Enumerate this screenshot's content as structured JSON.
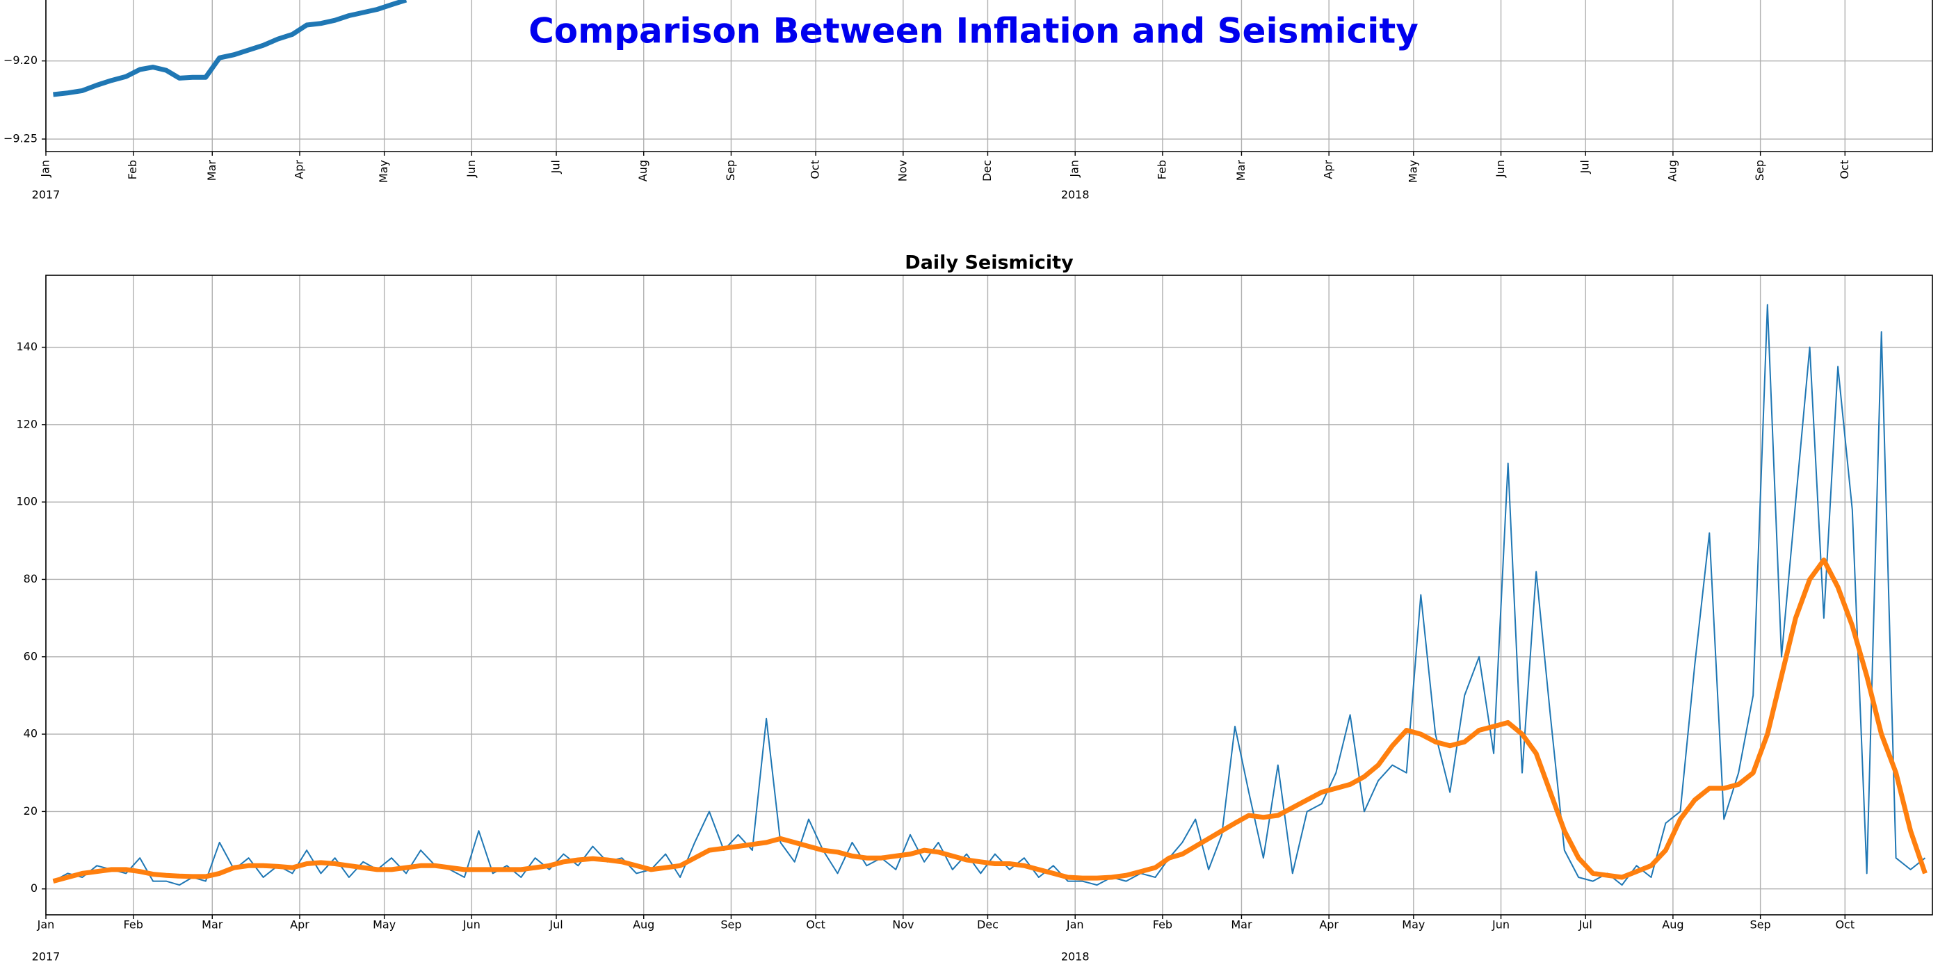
{
  "title": "Comparison Between Inflation and Seismicity",
  "chart_data": [
    {
      "type": "line",
      "x": [
        "2017-01",
        "2017-01",
        "2017-01",
        "2017-01",
        "2017-01",
        "2017-01",
        "2017-02",
        "2017-02",
        "2017-02",
        "2017-02",
        "2017-02",
        "2017-02",
        "2017-03",
        "2017-03",
        "2017-03",
        "2017-03",
        "2017-03",
        "2017-03",
        "2017-04",
        "2017-04",
        "2017-04",
        "2017-04",
        "2017-04",
        "2017-04",
        "2017-05",
        "2017-05"
      ],
      "series": [
        {
          "color": "#1f77b4",
          "values": [
            -9.2215,
            -9.2205,
            -9.219,
            -9.2155,
            -9.2125,
            -9.21,
            -9.2055,
            -9.204,
            -9.206,
            -9.211,
            -9.2105,
            -9.2105,
            -9.198,
            -9.196,
            -9.193,
            -9.19,
            -9.186,
            -9.183,
            -9.177,
            -9.176,
            -9.174,
            -9.171,
            -9.169,
            -9.167,
            -9.164,
            -9.161
          ]
        }
      ],
      "xlim": [
        "2017-01",
        "2018-11"
      ],
      "ylim": [
        -9.258,
        -9.161
      ],
      "yticks": [
        {
          "value": -9.25,
          "label": "−9.25"
        },
        {
          "value": -9.2,
          "label": "−9.20"
        }
      ],
      "xticks": [
        {
          "value": "2017-01",
          "label": "Jan"
        },
        {
          "value": "2017-02",
          "label": "Feb"
        },
        {
          "value": "2017-03",
          "label": "Mar"
        },
        {
          "value": "2017-04",
          "label": "Apr"
        },
        {
          "value": "2017-05",
          "label": "May"
        },
        {
          "value": "2017-06",
          "label": "Jun"
        },
        {
          "value": "2017-07",
          "label": "Jul"
        },
        {
          "value": "2017-08",
          "label": "Aug"
        },
        {
          "value": "2017-09",
          "label": "Sep"
        },
        {
          "value": "2017-10",
          "label": "Oct"
        },
        {
          "value": "2017-11",
          "label": "Nov"
        },
        {
          "value": "2017-12",
          "label": "Dec"
        },
        {
          "value": "2018-01",
          "label": "Jan"
        },
        {
          "value": "2018-02",
          "label": "Feb"
        },
        {
          "value": "2018-03",
          "label": "Mar"
        },
        {
          "value": "2018-04",
          "label": "Apr"
        },
        {
          "value": "2018-05",
          "label": "May"
        },
        {
          "value": "2018-06",
          "label": "Jun"
        },
        {
          "value": "2018-07",
          "label": "Jul"
        },
        {
          "value": "2018-08",
          "label": "Aug"
        },
        {
          "value": "2018-09",
          "label": "Sep"
        },
        {
          "value": "2018-10",
          "label": "Oct"
        }
      ],
      "year_labels": [
        {
          "value": "2017-01",
          "label": "2017"
        },
        {
          "value": "2018-01",
          "label": "2018"
        }
      ],
      "x_tick_rotation": 90,
      "grid": true
    },
    {
      "type": "line",
      "title": "Daily Seismicity",
      "x": [
        "2017-01",
        "2017-01",
        "2017-01",
        "2017-01",
        "2017-01",
        "2017-01",
        "2017-02",
        "2017-02",
        "2017-02",
        "2017-02",
        "2017-02",
        "2017-02",
        "2017-03",
        "2017-03",
        "2017-03",
        "2017-03",
        "2017-03",
        "2017-03",
        "2017-04",
        "2017-04",
        "2017-04",
        "2017-04",
        "2017-04",
        "2017-04",
        "2017-05",
        "2017-05",
        "2017-05",
        "2017-05",
        "2017-05",
        "2017-05",
        "2017-06",
        "2017-06",
        "2017-06",
        "2017-06",
        "2017-06",
        "2017-06",
        "2017-07",
        "2017-07",
        "2017-07",
        "2017-07",
        "2017-07",
        "2017-07",
        "2017-08",
        "2017-08",
        "2017-08",
        "2017-08",
        "2017-08",
        "2017-08",
        "2017-09",
        "2017-09",
        "2017-09",
        "2017-09",
        "2017-09",
        "2017-09",
        "2017-10",
        "2017-10",
        "2017-10",
        "2017-10",
        "2017-10",
        "2017-10",
        "2017-11",
        "2017-11",
        "2017-11",
        "2017-11",
        "2017-11",
        "2017-11",
        "2017-12",
        "2017-12",
        "2017-12",
        "2017-12",
        "2017-12",
        "2017-12",
        "2018-01",
        "2018-01",
        "2018-01",
        "2018-01",
        "2018-01",
        "2018-01",
        "2018-02",
        "2018-02",
        "2018-02",
        "2018-02",
        "2018-02",
        "2018-02",
        "2018-03",
        "2018-03",
        "2018-03",
        "2018-03",
        "2018-03",
        "2018-03",
        "2018-04",
        "2018-04",
        "2018-04",
        "2018-04",
        "2018-04",
        "2018-04",
        "2018-05",
        "2018-05",
        "2018-05",
        "2018-05",
        "2018-05",
        "2018-05",
        "2018-06",
        "2018-06",
        "2018-06",
        "2018-06",
        "2018-06",
        "2018-06",
        "2018-07",
        "2018-07",
        "2018-07",
        "2018-07",
        "2018-07",
        "2018-07",
        "2018-08",
        "2018-08",
        "2018-08",
        "2018-08",
        "2018-08",
        "2018-08",
        "2018-09",
        "2018-09",
        "2018-09",
        "2018-09",
        "2018-09",
        "2018-09",
        "2018-10",
        "2018-10",
        "2018-10",
        "2018-10",
        "2018-10",
        "2018-10"
      ],
      "series": [
        {
          "color": "#1f77b4",
          "width": "thin",
          "values": [
            2,
            4,
            3,
            6,
            5,
            4,
            8,
            2,
            2,
            1,
            3,
            2,
            12,
            5,
            8,
            3,
            6,
            4,
            10,
            4,
            8,
            3,
            7,
            5,
            8,
            4,
            10,
            6,
            5,
            3,
            15,
            4,
            6,
            3,
            8,
            5,
            9,
            6,
            11,
            7,
            8,
            4,
            5,
            9,
            3,
            12,
            20,
            10,
            14,
            10,
            44,
            12,
            7,
            18,
            10,
            4,
            12,
            6,
            8,
            5,
            14,
            7,
            12,
            5,
            9,
            4,
            9,
            5,
            8,
            3,
            6,
            2,
            2,
            1,
            3,
            2,
            4,
            3,
            8,
            12,
            18,
            5,
            14,
            42,
            25,
            8,
            32,
            4,
            20,
            22,
            30,
            45,
            20,
            28,
            32,
            30,
            76,
            40,
            25,
            50,
            60,
            35,
            110,
            30,
            82,
            45,
            10,
            3,
            2,
            4,
            1,
            6,
            3,
            17,
            20,
            58,
            92,
            18,
            30,
            50,
            151,
            60,
            100,
            140,
            70,
            135,
            98,
            4,
            144,
            8,
            5,
            8
          ]
        },
        {
          "color": "#ff7f0e",
          "width": "thick",
          "values": [
            2,
            3,
            4,
            4.5,
            5,
            5,
            4.5,
            3.8,
            3.5,
            3.3,
            3.2,
            3.2,
            4,
            5.5,
            6,
            6,
            5.8,
            5.5,
            6.5,
            6.8,
            6.5,
            6,
            5.5,
            5,
            5,
            5.5,
            6,
            6,
            5.5,
            5,
            5,
            5,
            5,
            5,
            5.5,
            6,
            7,
            7.5,
            7.8,
            7.5,
            7,
            6,
            5,
            5.5,
            6,
            8,
            10,
            10.5,
            11,
            11.5,
            12,
            13,
            12,
            11,
            10,
            9.5,
            8.5,
            8,
            8,
            8.5,
            9,
            10,
            9.5,
            8.5,
            7.5,
            7,
            6.5,
            6.5,
            6,
            5,
            4,
            3,
            2.8,
            2.8,
            3,
            3.5,
            4.5,
            5.5,
            8,
            9,
            11,
            13,
            15,
            17,
            19,
            18.5,
            19,
            21,
            23,
            25,
            26,
            27,
            29,
            32,
            37,
            41,
            40,
            38,
            37,
            38,
            41,
            42,
            43,
            40,
            35,
            25,
            15,
            8,
            4,
            3.5,
            3,
            4.5,
            6,
            10,
            18,
            23,
            26,
            26,
            27,
            30,
            40,
            55,
            70,
            80,
            85,
            78,
            68,
            55,
            40,
            30,
            15,
            4
          ]
        }
      ],
      "xlim": [
        "2017-01",
        "2018-11"
      ],
      "ylim": [
        -6.7,
        158.6
      ],
      "yticks": [
        0,
        20,
        40,
        60,
        80,
        100,
        120,
        140
      ],
      "xticks": [
        {
          "value": "2017-01",
          "label": "Jan"
        },
        {
          "value": "2017-02",
          "label": "Feb"
        },
        {
          "value": "2017-03",
          "label": "Mar"
        },
        {
          "value": "2017-04",
          "label": "Apr"
        },
        {
          "value": "2017-05",
          "label": "May"
        },
        {
          "value": "2017-06",
          "label": "Jun"
        },
        {
          "value": "2017-07",
          "label": "Jul"
        },
        {
          "value": "2017-08",
          "label": "Aug"
        },
        {
          "value": "2017-09",
          "label": "Sep"
        },
        {
          "value": "2017-10",
          "label": "Oct"
        },
        {
          "value": "2017-11",
          "label": "Nov"
        },
        {
          "value": "2017-12",
          "label": "Dec"
        },
        {
          "value": "2018-01",
          "label": "Jan"
        },
        {
          "value": "2018-02",
          "label": "Feb"
        },
        {
          "value": "2018-03",
          "label": "Mar"
        },
        {
          "value": "2018-04",
          "label": "Apr"
        },
        {
          "value": "2018-05",
          "label": "May"
        },
        {
          "value": "2018-06",
          "label": "Jun"
        },
        {
          "value": "2018-07",
          "label": "Jul"
        },
        {
          "value": "2018-08",
          "label": "Aug"
        },
        {
          "value": "2018-09",
          "label": "Sep"
        },
        {
          "value": "2018-10",
          "label": "Oct"
        }
      ],
      "year_labels": [
        {
          "value": "2017-01",
          "label": "2017"
        },
        {
          "value": "2018-01",
          "label": "2018"
        }
      ],
      "x_tick_rotation": 0,
      "grid": true
    }
  ]
}
